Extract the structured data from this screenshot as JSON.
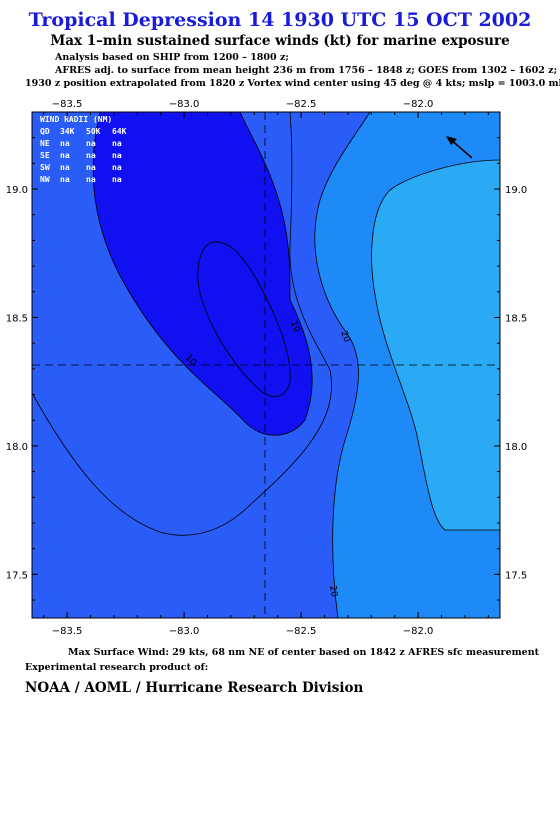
{
  "header": {
    "title": "Tropical Depression 14 1930 UTC 15 OCT 2002",
    "subtitle": "Max 1–min sustained surface winds (kt) for marine exposure",
    "line1": "Analysis based on  SHIP from 1200 – 1800 z;",
    "line2": "AFRES adj. to surface from mean height 236 m from 1756 – 1848 z;  GOES from 1302 – 1602 z;",
    "line3": "1930 z position extrapolated from 1820 z Vortex wind center using 45 deg @ 4 kts; mslp = 1003.0 mb"
  },
  "map": {
    "lon_range": [
      -83.65,
      -81.65
    ],
    "lat_range": [
      17.33,
      19.3
    ],
    "lon_ticks": [
      "−83.5",
      "−83.0",
      "−82.5",
      "−82.0"
    ],
    "lon_tick_values": [
      -83.5,
      -83.0,
      -82.5,
      -82.0
    ],
    "lat_ticks": [
      "19.0",
      "18.5",
      "18.0",
      "17.5"
    ],
    "lat_tick_values": [
      19.0,
      18.5,
      18.0,
      17.5
    ],
    "storm_center": {
      "lon": -82.6,
      "lat": 18.32
    },
    "contour_levels": [
      "10",
      "10",
      "20",
      "20"
    ],
    "colors": {
      "lt10": "#1010f0",
      "band10_20": "#2a5cf8",
      "band20_30": "#1e8af8",
      "band30": "#2aaaf4"
    },
    "motion_arrow_icon": "arrow-northwest-icon"
  },
  "wind_radii": {
    "header": "WIND RADII (NM)",
    "columns": [
      "QD",
      "34K",
      "50K",
      "64K"
    ],
    "rows": [
      [
        "NE",
        "na",
        "na",
        "na"
      ],
      [
        "SE",
        "na",
        "na",
        "na"
      ],
      [
        "SW",
        "na",
        "na",
        "na"
      ],
      [
        "NW",
        "na",
        "na",
        "na"
      ]
    ]
  },
  "footer": {
    "max_wind": "Max Surface Wind: 29 kts, 68 nm NE of center based on 1842 z AFRES sfc measurement",
    "product": "Experimental research product of:",
    "org": "NOAA / AOML / Hurricane Research Division"
  }
}
